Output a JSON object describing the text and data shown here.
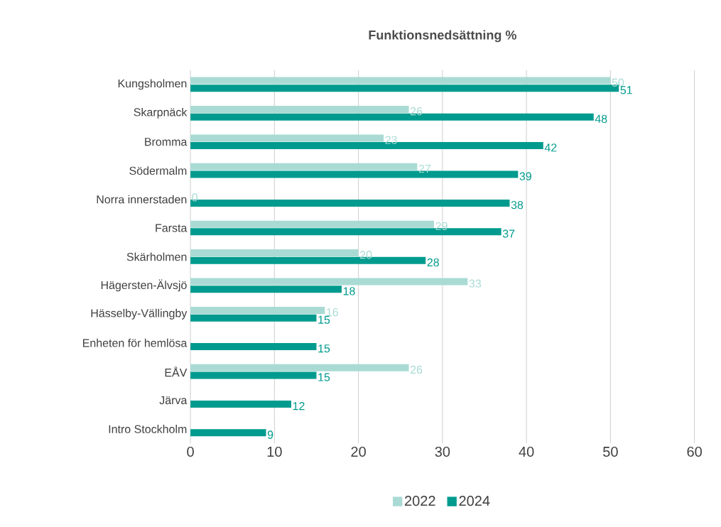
{
  "chart_data": {
    "type": "bar",
    "orientation": "horizontal",
    "title": "Funktionsnedsättning %",
    "categories": [
      "Kungsholmen",
      "Skarpnäck",
      "Bromma",
      "Södermalm",
      "Norra innerstaden",
      "Farsta",
      "Skärholmen",
      "Hägersten-Älvsjö",
      "Hässelby-Vällingby",
      "Enheten för hemlösa",
      "EÅV",
      "Järva",
      "Intro Stockholm"
    ],
    "series": [
      {
        "name": "2022",
        "color": "#a9dbd4",
        "values": [
          50,
          26,
          23,
          27,
          0,
          29,
          20,
          33,
          16,
          null,
          26,
          null,
          null
        ],
        "value_labels": [
          "50",
          "26",
          "23",
          "27",
          "0",
          "29",
          "20",
          "33",
          "16",
          null,
          "26",
          null,
          null
        ]
      },
      {
        "name": "2024",
        "color": "#009b8e",
        "values": [
          51,
          48,
          42,
          39,
          38,
          37,
          28,
          18,
          15,
          15,
          15,
          12,
          9
        ],
        "value_labels": [
          "51",
          "48",
          "42",
          "39",
          "38",
          "37",
          "28",
          "18",
          "15",
          "15",
          "15",
          "12",
          "9"
        ]
      }
    ],
    "xlim": [
      0,
      60
    ],
    "xticks": [
      0,
      10,
      20,
      30,
      40,
      50,
      60
    ],
    "grid": "x",
    "legend": "bottom"
  }
}
